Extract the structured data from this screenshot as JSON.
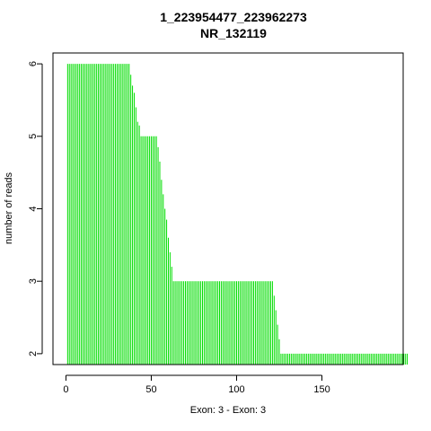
{
  "chart_data": {
    "type": "bar",
    "title": [
      "1_223954477_223962273",
      "NR_132119"
    ],
    "xlabel": "Exon: 3 - Exon: 3",
    "ylabel": "number of reads",
    "xlim": [
      -7.6,
      197.6
    ],
    "ylim": [
      1.85,
      6.15
    ],
    "xticks": [
      0,
      50,
      100,
      150
    ],
    "yticks": [
      2,
      3,
      4,
      5,
      6
    ],
    "bar_color": "#00dd00",
    "x_start": 1,
    "values": [
      6,
      6,
      6,
      6,
      6,
      6,
      6,
      6,
      6,
      6,
      6,
      6,
      6,
      6,
      6,
      6,
      6,
      6,
      6,
      6,
      6,
      6,
      6,
      6,
      6,
      6,
      6,
      6,
      6,
      6,
      6,
      6,
      6,
      6,
      6,
      6,
      6,
      5.85,
      5.7,
      5.6,
      5.4,
      5.2,
      5.15,
      5,
      5,
      5,
      5,
      5,
      5,
      5,
      5,
      5,
      5,
      4.85,
      4.65,
      4.4,
      4.2,
      4.0,
      3.85,
      3.6,
      3.4,
      3.2,
      3,
      3,
      3,
      3,
      3,
      3,
      3,
      3,
      3,
      3,
      3,
      3,
      3,
      3,
      3,
      3,
      3,
      3,
      3,
      3,
      3,
      3,
      3,
      3,
      3,
      3,
      3,
      3,
      3,
      3,
      3,
      3,
      3,
      3,
      3,
      3,
      3,
      3,
      3,
      3,
      3,
      3,
      3,
      3,
      3,
      3,
      3,
      3,
      3,
      3,
      3,
      3,
      3,
      3,
      3,
      3,
      3,
      3,
      3,
      2.8,
      2.6,
      2.4,
      2.2,
      2,
      2,
      2,
      2,
      2,
      2,
      2,
      2,
      2,
      2,
      2,
      2,
      2,
      2,
      2,
      2,
      2,
      2,
      2,
      2,
      2,
      2,
      2,
      2,
      2,
      2,
      2,
      2,
      2,
      2,
      2,
      2,
      2,
      2,
      2,
      2,
      2,
      2,
      2,
      2,
      2,
      2,
      2,
      2,
      2,
      2,
      2,
      2,
      2,
      2,
      2,
      2,
      2,
      2,
      2,
      2,
      2,
      2,
      2,
      2,
      2,
      2,
      2,
      2,
      2,
      2,
      2,
      2,
      2,
      2,
      2,
      2,
      2,
      2,
      2
    ]
  }
}
